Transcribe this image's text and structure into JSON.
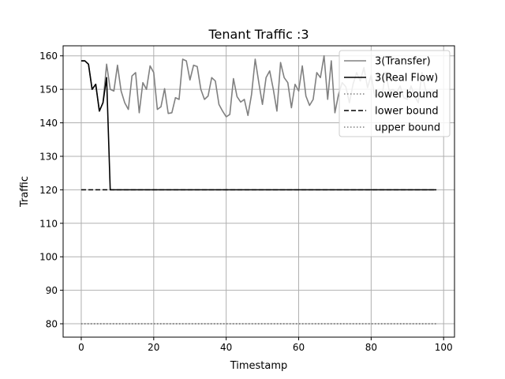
{
  "chart_data": {
    "type": "line",
    "title": "Tenant Traffic :3",
    "xlabel": "Timestamp",
    "ylabel": "Traffic",
    "xlim": [
      -5,
      103
    ],
    "ylim": [
      76,
      163
    ],
    "xticks": [
      0,
      20,
      40,
      60,
      80,
      100
    ],
    "yticks": [
      80,
      90,
      100,
      110,
      120,
      130,
      140,
      150,
      160
    ],
    "grid": true,
    "legend_position": "top-right",
    "series": [
      {
        "name": "3(Transfer)",
        "color": "#808080",
        "dash": "solid",
        "x": [
          0,
          1,
          2,
          3,
          4,
          5,
          6,
          7,
          8,
          9,
          10,
          11,
          12,
          13,
          14,
          15,
          16,
          17,
          18,
          19,
          20,
          21,
          22,
          23,
          24,
          25,
          26,
          27,
          28,
          29,
          30,
          31,
          32,
          33,
          34,
          35,
          36,
          37,
          38,
          39,
          40,
          41,
          42,
          43,
          44,
          45,
          46,
          47,
          48,
          49,
          50,
          51,
          52,
          53,
          54,
          55,
          56,
          57,
          58,
          59,
          60,
          61,
          62,
          63,
          64,
          65,
          66,
          67,
          68,
          69,
          70,
          71,
          72,
          73,
          74,
          75,
          76,
          77,
          78,
          79,
          80,
          81,
          82,
          83,
          84,
          85,
          86,
          87,
          88,
          89,
          90,
          91,
          92,
          93,
          94,
          95,
          96,
          97,
          98
        ],
        "y": [
          158.5,
          158.5,
          157.5,
          150,
          151.5,
          143.5,
          146,
          157.5,
          150,
          149.5,
          157.2,
          149.5,
          146,
          144,
          154,
          155,
          143,
          152,
          150,
          157,
          155,
          144,
          144.8,
          150.2,
          142.8,
          143,
          147.5,
          147,
          159,
          158.5,
          152.8,
          157.2,
          156.8,
          150,
          147,
          148,
          153.5,
          152.5,
          145.5,
          143.5,
          141.8,
          142.5,
          153.2,
          147.8,
          146.2,
          147,
          142.2,
          148.5,
          159,
          152,
          145.5,
          153.5,
          155.5,
          150,
          143.5,
          158,
          153.5,
          152,
          144.5,
          151.5,
          149.5,
          157,
          148,
          145.2,
          147,
          155,
          153.5,
          160,
          147,
          158.5,
          143,
          148.5,
          152,
          150.8,
          146,
          151.5,
          155,
          152.5,
          156.5,
          150.5,
          154.2,
          148,
          148.5,
          148,
          155,
          149.5,
          150,
          149,
          151,
          147.5,
          147,
          151,
          148,
          146,
          155,
          150,
          148.5,
          149.5,
          147.5
        ]
      },
      {
        "name": "3(Real Flow)",
        "color": "#000000",
        "dash": "solid",
        "x": [
          0,
          1,
          2,
          3,
          4,
          5,
          6,
          7,
          8,
          98
        ],
        "y": [
          158.5,
          158.5,
          157.5,
          150,
          151.5,
          143.5,
          146,
          153.5,
          120,
          120
        ]
      },
      {
        "name": "lower bound",
        "color": "#808080",
        "dash": "dotted",
        "x": [
          0,
          98
        ],
        "y": [
          80,
          80
        ]
      },
      {
        "name": "lower bound",
        "color": "#000000",
        "dash": "dashed",
        "x": [
          0,
          98
        ],
        "y": [
          120,
          120
        ]
      },
      {
        "name": "upper bound",
        "color": "#808080",
        "dash": "dotted",
        "x": [
          0,
          98
        ],
        "y": [
          80,
          80
        ]
      }
    ]
  }
}
